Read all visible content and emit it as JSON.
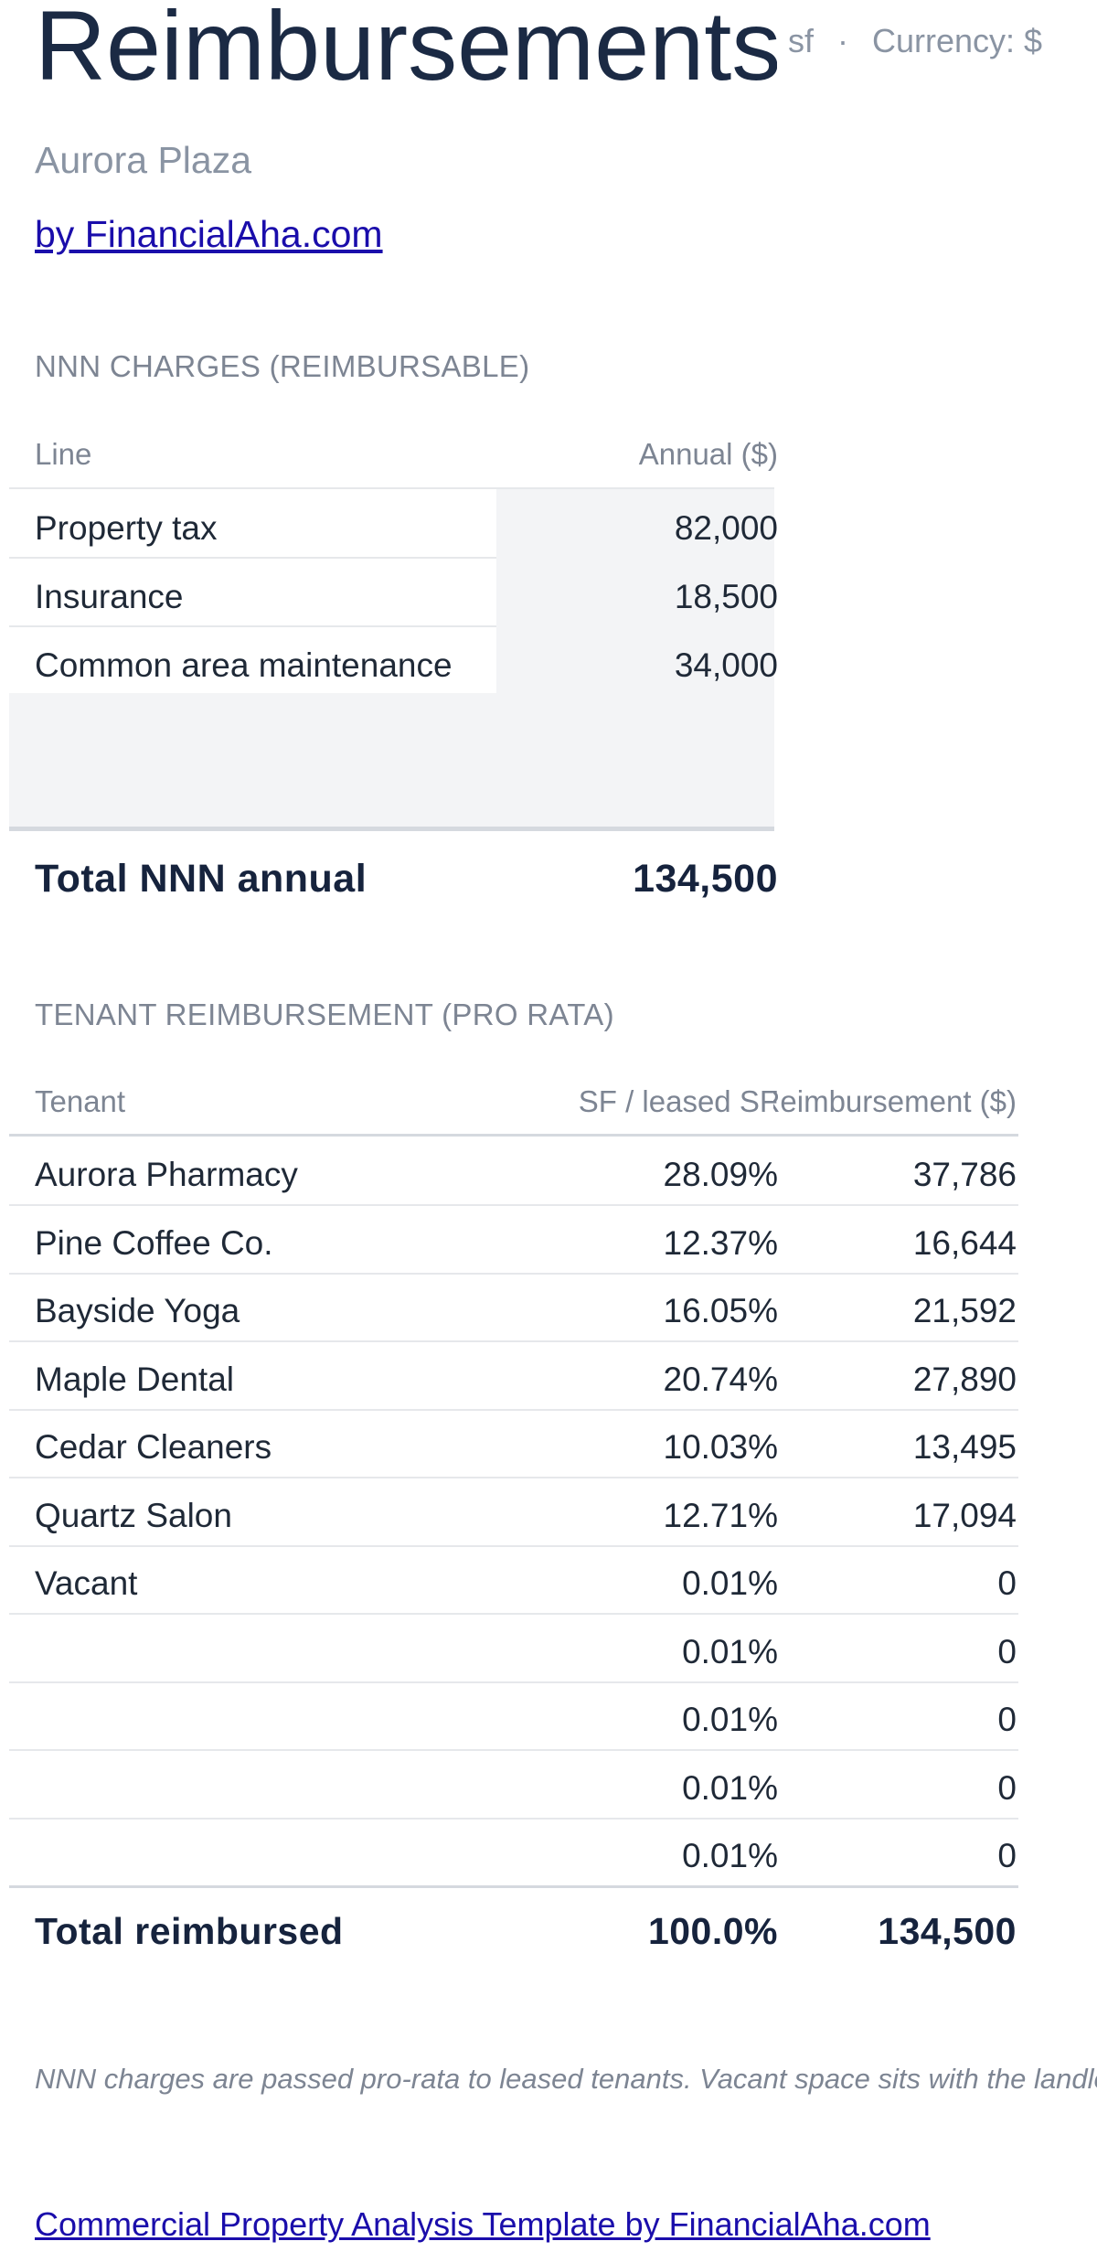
{
  "header": {
    "title": "Reimbursements",
    "unit": "sf",
    "currency": "Currency: $",
    "subtitle": "Aurora Plaza",
    "byline_link": "by FinancialAha.com"
  },
  "nnn": {
    "section_label": "NNN CHARGES (REIMBURSABLE)",
    "columns": [
      "Line",
      "Annual ($)"
    ],
    "rows": [
      {
        "line": "Property tax",
        "annual": "82,000"
      },
      {
        "line": "Insurance",
        "annual": "18,500"
      },
      {
        "line": "Common area maintenance",
        "annual": "34,000"
      }
    ],
    "total_label": "Total NNN annual",
    "total_value": "134,500"
  },
  "tenants": {
    "section_label": "TENANT REIMBURSEMENT (PRO RATA)",
    "columns": [
      "Tenant",
      "SF / leased SF",
      "Reimbursement ($)"
    ],
    "rows": [
      {
        "tenant": "Aurora Pharmacy",
        "share": "28.09%",
        "reimb": "37,786"
      },
      {
        "tenant": "Pine Coffee Co.",
        "share": "12.37%",
        "reimb": "16,644"
      },
      {
        "tenant": "Bayside Yoga",
        "share": "16.05%",
        "reimb": "21,592"
      },
      {
        "tenant": "Maple Dental",
        "share": "20.74%",
        "reimb": "27,890"
      },
      {
        "tenant": "Cedar Cleaners",
        "share": "10.03%",
        "reimb": "13,495"
      },
      {
        "tenant": "Quartz Salon",
        "share": "12.71%",
        "reimb": "17,094"
      },
      {
        "tenant": "Vacant",
        "share": "0.01%",
        "reimb": "0"
      },
      {
        "tenant": "",
        "share": "0.01%",
        "reimb": "0"
      },
      {
        "tenant": "",
        "share": "0.01%",
        "reimb": "0"
      },
      {
        "tenant": "",
        "share": "0.01%",
        "reimb": "0"
      },
      {
        "tenant": "",
        "share": "0.01%",
        "reimb": "0"
      }
    ],
    "total_label": "Total reimbursed",
    "total_share": "100.0%",
    "total_reimb": "134,500"
  },
  "footer": {
    "note": "NNN charges are passed pro-rata to leased tenants. Vacant space sits with the landlord.",
    "link": "Commercial Property Analysis Template by FinancialAha.com"
  }
}
